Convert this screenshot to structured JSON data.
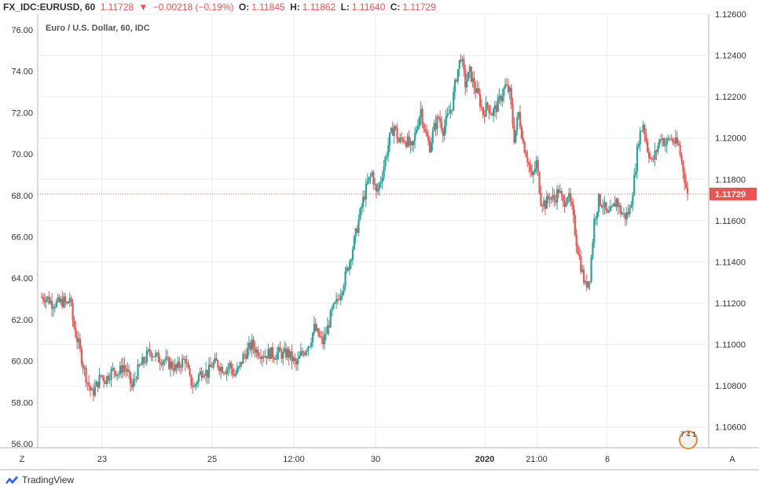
{
  "header": {
    "symbol": "FX_IDC:EURUSD, 60",
    "last": "1.11728",
    "change_arrow": "▼",
    "change": "−0.00218 (−0.19%)",
    "o_label": "O:",
    "o_value": "1.11845",
    "h_label": "H:",
    "h_value": "1.11862",
    "l_label": "L:",
    "l_value": "1.11640",
    "c_label": "C:",
    "c_value": "1.11729"
  },
  "legend_title": "Euro / U.S. Dollar, 60, IDC",
  "price_label": "1.11729",
  "corner_left": "Z",
  "corner_right": "A",
  "watermark_digits": "7 4 1",
  "footer": {
    "brand": "TradingView"
  },
  "colors": {
    "up": "#26a69a",
    "down": "#ef5350",
    "grid": "#e9edf2",
    "axis": "#b2b5be",
    "last_line": "#ef5350"
  },
  "chart_data": {
    "type": "candlestick",
    "title": "Euro / U.S. Dollar, 60, IDC",
    "left_axis": {
      "ticks": [
        "76.00",
        "74.00",
        "72.00",
        "70.00",
        "68.00",
        "66.00",
        "64.00",
        "62.00",
        "60.00",
        "58.00",
        "56.00"
      ]
    },
    "right_axis": {
      "ticks": [
        "1.12600",
        "1.12400",
        "1.12200",
        "1.12000",
        "1.11800",
        "1.11600",
        "1.11400",
        "1.11200",
        "1.11000",
        "1.10800",
        "1.10600"
      ],
      "range": [
        1.105,
        1.126
      ]
    },
    "x_ticks": [
      "23",
      "25",
      "12:00",
      "30",
      "2020",
      "21:00",
      "6"
    ],
    "last_price": 1.11729,
    "close_path": [
      [
        0,
        1.1123
      ],
      [
        4,
        1.1123
      ],
      [
        8,
        1.112
      ],
      [
        12,
        1.112
      ],
      [
        16,
        1.1121
      ],
      [
        18,
        1.1119
      ],
      [
        20,
        1.1123
      ],
      [
        22,
        1.1112
      ],
      [
        24,
        1.1105
      ],
      [
        26,
        1.11
      ],
      [
        29,
        1.109
      ],
      [
        32,
        1.1082
      ],
      [
        35,
        1.1076
      ],
      [
        38,
        1.108
      ],
      [
        41,
        1.1085
      ],
      [
        44,
        1.1083
      ],
      [
        47,
        1.1086
      ],
      [
        50,
        1.1088
      ],
      [
        53,
        1.1086
      ],
      [
        56,
        1.109
      ],
      [
        59,
        1.1086
      ],
      [
        62,
        1.1079
      ],
      [
        65,
        1.1086
      ],
      [
        68,
        1.109
      ],
      [
        71,
        1.1093
      ],
      [
        74,
        1.1097
      ],
      [
        77,
        1.1095
      ],
      [
        80,
        1.1093
      ],
      [
        83,
        1.1093
      ],
      [
        86,
        1.1091
      ],
      [
        89,
        1.109
      ],
      [
        92,
        1.1088
      ],
      [
        95,
        1.1091
      ],
      [
        98,
        1.1093
      ],
      [
        101,
        1.1083
      ],
      [
        104,
        1.1079
      ],
      [
        107,
        1.1085
      ],
      [
        110,
        1.1088
      ],
      [
        113,
        1.1086
      ],
      [
        116,
        1.109
      ],
      [
        119,
        1.1091
      ],
      [
        122,
        1.1089
      ],
      [
        125,
        1.1088
      ],
      [
        128,
        1.109
      ],
      [
        131,
        1.1085
      ],
      [
        134,
        1.1088
      ],
      [
        137,
        1.1094
      ],
      [
        140,
        1.1097
      ],
      [
        143,
        1.11
      ],
      [
        146,
        1.1097
      ],
      [
        149,
        1.1096
      ],
      [
        152,
        1.1095
      ],
      [
        155,
        1.1096
      ],
      [
        158,
        1.1095
      ],
      [
        161,
        1.1096
      ],
      [
        164,
        1.1095
      ],
      [
        167,
        1.1096
      ],
      [
        170,
        1.1093
      ],
      [
        173,
        1.109
      ],
      [
        176,
        1.1095
      ],
      [
        179,
        1.1098
      ],
      [
        182,
        1.1101
      ],
      [
        185,
        1.1108
      ],
      [
        188,
        1.1104
      ],
      [
        191,
        1.1101
      ],
      [
        194,
        1.1108
      ],
      [
        197,
        1.1116
      ],
      [
        200,
        1.112
      ],
      [
        203,
        1.1126
      ],
      [
        206,
        1.1133
      ],
      [
        209,
        1.1141
      ],
      [
        212,
        1.115
      ],
      [
        215,
        1.116
      ],
      [
        218,
        1.117
      ],
      [
        221,
        1.1178
      ],
      [
        224,
        1.1183
      ],
      [
        227,
        1.1173
      ],
      [
        230,
        1.118
      ],
      [
        233,
        1.119
      ],
      [
        236,
        1.12
      ],
      [
        239,
        1.1206
      ],
      [
        242,
        1.1198
      ],
      [
        245,
        1.12
      ],
      [
        248,
        1.1198
      ],
      [
        251,
        1.1194
      ],
      [
        254,
        1.1205
      ],
      [
        257,
        1.1214
      ],
      [
        260,
        1.1202
      ],
      [
        263,
        1.1196
      ],
      [
        266,
        1.1205
      ],
      [
        269,
        1.121
      ],
      [
        272,
        1.1204
      ],
      [
        275,
        1.121
      ],
      [
        278,
        1.1216
      ],
      [
        281,
        1.123
      ],
      [
        284,
        1.124
      ],
      [
        287,
        1.1226
      ],
      [
        290,
        1.1232
      ],
      [
        293,
        1.1225
      ],
      [
        296,
        1.122
      ],
      [
        299,
        1.1212
      ],
      [
        302,
        1.1216
      ],
      [
        305,
        1.1212
      ],
      [
        308,
        1.1215
      ],
      [
        311,
        1.122
      ],
      [
        314,
        1.1225
      ],
      [
        317,
        1.1222
      ],
      [
        320,
        1.12
      ],
      [
        323,
        1.1212
      ],
      [
        326,
        1.1198
      ],
      [
        329,
        1.119
      ],
      [
        332,
        1.118
      ],
      [
        335,
        1.1188
      ],
      [
        338,
        1.117
      ],
      [
        341,
        1.1168
      ],
      [
        344,
        1.1172
      ],
      [
        347,
        1.117
      ],
      [
        350,
        1.1175
      ],
      [
        353,
        1.1168
      ],
      [
        356,
        1.1173
      ],
      [
        359,
        1.1165
      ],
      [
        362,
        1.115
      ],
      [
        365,
        1.1138
      ],
      [
        368,
        1.1128
      ],
      [
        371,
        1.1133
      ],
      [
        374,
        1.116
      ],
      [
        377,
        1.117
      ],
      [
        380,
        1.1168
      ],
      [
        383,
        1.1162
      ],
      [
        386,
        1.1165
      ],
      [
        389,
        1.117
      ],
      [
        392,
        1.1164
      ],
      [
        395,
        1.1162
      ],
      [
        398,
        1.1165
      ],
      [
        401,
        1.118
      ],
      [
        404,
        1.12
      ],
      [
        407,
        1.1207
      ],
      [
        410,
        1.1195
      ],
      [
        413,
        1.1188
      ],
      [
        416,
        1.1194
      ],
      [
        419,
        1.1201
      ],
      [
        422,
        1.1197
      ],
      [
        425,
        1.12
      ],
      [
        428,
        1.1198
      ],
      [
        431,
        1.1196
      ],
      [
        434,
        1.1185
      ],
      [
        437,
        1.1172
      ]
    ]
  }
}
